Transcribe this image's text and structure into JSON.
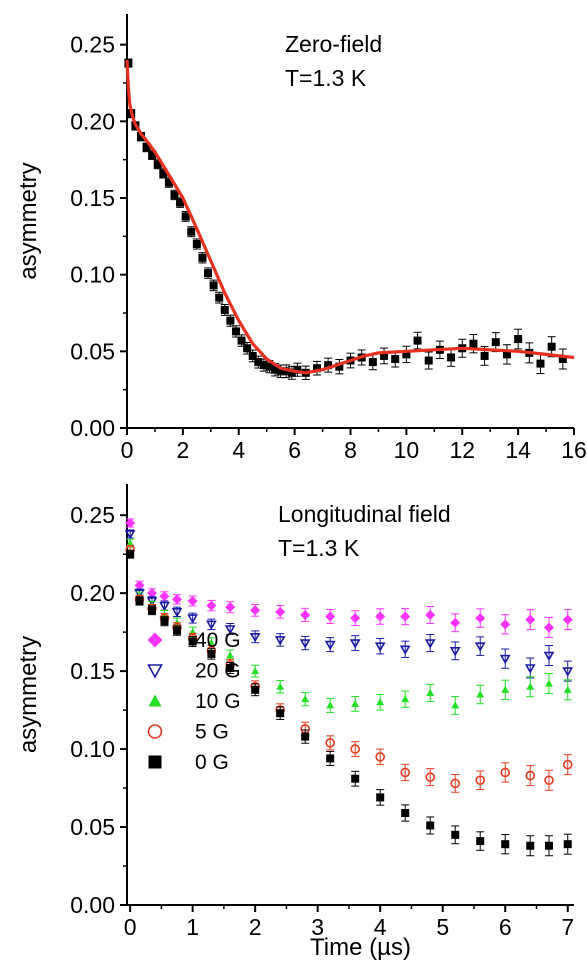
{
  "chart_data": [
    {
      "type": "scatter",
      "annotations": [
        "Zero-field",
        "T=1.3 K"
      ],
      "xlabel": "",
      "ylabel": "asymmetry",
      "xlim": [
        0,
        16
      ],
      "ylim": [
        0.0,
        0.27
      ],
      "xticks": [
        "0",
        "2",
        "4",
        "6",
        "8",
        "10",
        "12",
        "14",
        "16"
      ],
      "yticks": [
        "0.00",
        "0.05",
        "0.10",
        "0.15",
        "0.20",
        "0.25"
      ],
      "grid": false,
      "series": [
        {
          "marker": "filled-square",
          "color": "#000000",
          "error_bars": true,
          "x": [
            0.05,
            0.15,
            0.3,
            0.5,
            0.7,
            0.9,
            1.1,
            1.3,
            1.5,
            1.7,
            1.9,
            2.1,
            2.3,
            2.5,
            2.7,
            2.9,
            3.1,
            3.3,
            3.5,
            3.7,
            3.9,
            4.1,
            4.3,
            4.5,
            4.7,
            4.9,
            5.1,
            5.3,
            5.5,
            5.7,
            5.9,
            6.1,
            6.4,
            6.8,
            7.2,
            7.6,
            8.0,
            8.4,
            8.8,
            9.2,
            9.6,
            10.0,
            10.4,
            10.8,
            11.2,
            11.6,
            12.0,
            12.4,
            12.8,
            13.2,
            13.6,
            14.0,
            14.4,
            14.8,
            15.2,
            15.6
          ],
          "y": [
            0.238,
            0.205,
            0.197,
            0.19,
            0.183,
            0.178,
            0.172,
            0.166,
            0.16,
            0.152,
            0.147,
            0.138,
            0.128,
            0.12,
            0.111,
            0.101,
            0.093,
            0.085,
            0.077,
            0.07,
            0.063,
            0.057,
            0.052,
            0.047,
            0.043,
            0.041,
            0.04,
            0.038,
            0.037,
            0.037,
            0.036,
            0.038,
            0.036,
            0.039,
            0.041,
            0.04,
            0.044,
            0.046,
            0.043,
            0.047,
            0.045,
            0.048,
            0.057,
            0.044,
            0.051,
            0.046,
            0.052,
            0.055,
            0.047,
            0.056,
            0.048,
            0.058,
            0.049,
            0.042,
            0.053,
            0.045
          ]
        },
        {
          "type": "line",
          "role": "fit",
          "color": "#e8301e",
          "x": [
            0,
            0.05,
            0.1,
            0.2,
            0.3,
            0.5,
            0.8,
            1.0,
            1.5,
            2.0,
            2.5,
            3.0,
            3.5,
            4.0,
            4.5,
            5.0,
            5.5,
            6.0,
            6.4,
            7.0,
            7.5,
            8.0,
            8.5,
            9.0,
            10.0,
            11.0,
            12.0,
            13.0,
            14.0,
            15.0,
            16.0
          ],
          "y": [
            0.24,
            0.222,
            0.211,
            0.203,
            0.198,
            0.192,
            0.185,
            0.18,
            0.165,
            0.15,
            0.13,
            0.109,
            0.088,
            0.07,
            0.055,
            0.045,
            0.039,
            0.037,
            0.036,
            0.038,
            0.041,
            0.044,
            0.047,
            0.049,
            0.05,
            0.051,
            0.052,
            0.051,
            0.05,
            0.048,
            0.046
          ]
        }
      ]
    },
    {
      "type": "scatter",
      "annotations": [
        "Longitudinal field",
        "T=1.3 K"
      ],
      "xlabel": "Time (µs)",
      "ylabel": "asymmetry",
      "xlim": [
        -0.05,
        7.1
      ],
      "ylim": [
        0.0,
        0.27
      ],
      "xticks": [
        "0",
        "1",
        "2",
        "3",
        "4",
        "5",
        "6",
        "7"
      ],
      "yticks": [
        "0.00",
        "0.05",
        "0.10",
        "0.15",
        "0.20",
        "0.25"
      ],
      "grid": false,
      "legend_position": "bottom-left",
      "series": [
        {
          "name": "40 G",
          "marker": "filled-diamond",
          "color": "#ff33ff",
          "x": [
            0,
            0.15,
            0.35,
            0.55,
            0.75,
            1.0,
            1.3,
            1.6,
            2.0,
            2.4,
            2.8,
            3.2,
            3.6,
            4.0,
            4.4,
            4.8,
            5.2,
            5.6,
            6.0,
            6.4,
            6.7,
            7.0
          ],
          "y": [
            0.245,
            0.205,
            0.2,
            0.198,
            0.196,
            0.195,
            0.192,
            0.191,
            0.189,
            0.188,
            0.186,
            0.185,
            0.184,
            0.185,
            0.185,
            0.186,
            0.181,
            0.184,
            0.18,
            0.183,
            0.178,
            0.183
          ]
        },
        {
          "name": "20 G",
          "marker": "open-triangle-down",
          "color": "#1a1aa6",
          "x": [
            0,
            0.15,
            0.35,
            0.55,
            0.75,
            1.0,
            1.3,
            1.6,
            2.0,
            2.4,
            2.8,
            3.2,
            3.6,
            4.0,
            4.4,
            4.8,
            5.2,
            5.6,
            6.0,
            6.4,
            6.7,
            7.0
          ],
          "y": [
            0.238,
            0.2,
            0.195,
            0.192,
            0.188,
            0.184,
            0.18,
            0.177,
            0.172,
            0.17,
            0.168,
            0.167,
            0.168,
            0.166,
            0.164,
            0.168,
            0.163,
            0.166,
            0.158,
            0.152,
            0.16,
            0.15
          ]
        },
        {
          "name": "10 G",
          "marker": "filled-triangle-up",
          "color": "#22e022",
          "x": [
            0,
            0.15,
            0.35,
            0.55,
            0.75,
            1.0,
            1.3,
            1.6,
            2.0,
            2.4,
            2.8,
            3.2,
            3.6,
            4.0,
            4.4,
            4.8,
            5.2,
            5.6,
            6.0,
            6.4,
            6.7,
            7.0
          ],
          "y": [
            0.232,
            0.198,
            0.192,
            0.186,
            0.181,
            0.175,
            0.168,
            0.16,
            0.15,
            0.14,
            0.132,
            0.128,
            0.129,
            0.13,
            0.132,
            0.136,
            0.128,
            0.135,
            0.138,
            0.14,
            0.142,
            0.138
          ]
        },
        {
          "name": "5 G",
          "marker": "open-circle",
          "color": "#e83a1e",
          "x": [
            0,
            0.15,
            0.35,
            0.55,
            0.75,
            1.0,
            1.3,
            1.6,
            2.0,
            2.4,
            2.8,
            3.2,
            3.6,
            4.0,
            4.4,
            4.8,
            5.2,
            5.6,
            6.0,
            6.4,
            6.7,
            7.0
          ],
          "y": [
            0.228,
            0.196,
            0.19,
            0.184,
            0.178,
            0.171,
            0.163,
            0.154,
            0.14,
            0.125,
            0.113,
            0.104,
            0.1,
            0.095,
            0.085,
            0.082,
            0.078,
            0.08,
            0.085,
            0.083,
            0.08,
            0.09
          ]
        },
        {
          "name": "0 G",
          "marker": "filled-square",
          "color": "#000000",
          "x": [
            0,
            0.15,
            0.35,
            0.55,
            0.75,
            1.0,
            1.3,
            1.6,
            2.0,
            2.4,
            2.8,
            3.2,
            3.6,
            4.0,
            4.4,
            4.8,
            5.2,
            5.6,
            6.0,
            6.4,
            6.7,
            7.0
          ],
          "y": [
            0.225,
            0.195,
            0.189,
            0.182,
            0.176,
            0.169,
            0.161,
            0.152,
            0.138,
            0.123,
            0.108,
            0.094,
            0.081,
            0.069,
            0.059,
            0.051,
            0.045,
            0.041,
            0.039,
            0.038,
            0.038,
            0.039
          ]
        }
      ]
    }
  ]
}
